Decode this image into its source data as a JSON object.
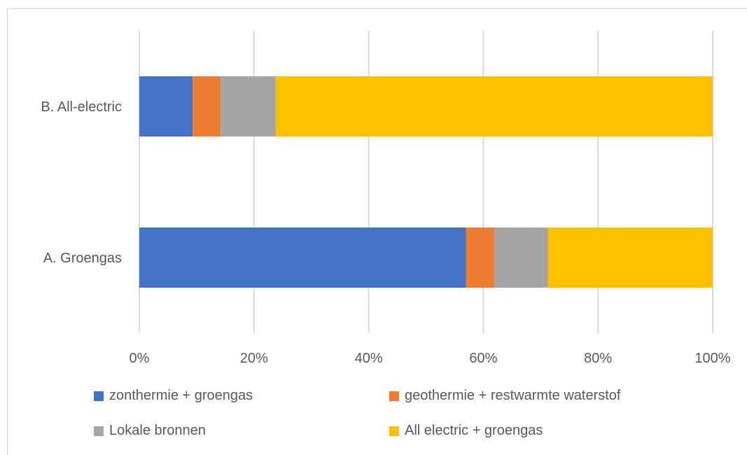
{
  "chart_data": {
    "type": "bar",
    "orientation": "horizontal",
    "stacked": "percent",
    "categories": [
      "B. All-electric",
      "A. Groengas"
    ],
    "series": [
      {
        "name": "zonthermie + groengas",
        "color": "#4472c4",
        "values": [
          9.3,
          57.0
        ]
      },
      {
        "name": "geothermie + restwarmte waterstof",
        "color": "#ed7d31",
        "values": [
          4.9,
          4.9
        ]
      },
      {
        "name": "Lokale bronnen",
        "color": "#a5a5a5",
        "values": [
          9.6,
          9.4
        ]
      },
      {
        "name": "All electric + groengas",
        "color": "#ffc000",
        "values": [
          76.2,
          28.7
        ]
      }
    ],
    "xlim": [
      0,
      100
    ],
    "xticks": [
      "0%",
      "20%",
      "40%",
      "60%",
      "80%",
      "100%"
    ],
    "grid": true,
    "legend_position": "bottom"
  }
}
